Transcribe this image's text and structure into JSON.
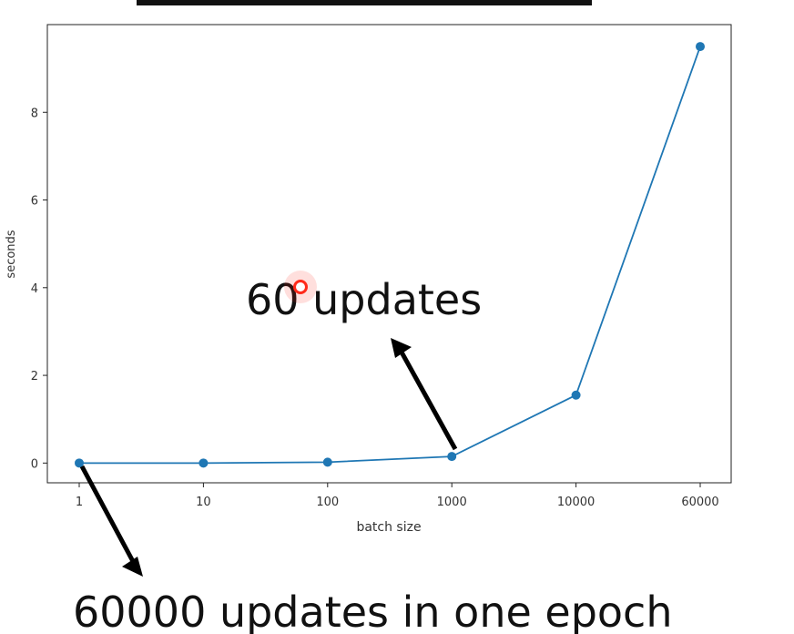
{
  "chart_data": {
    "type": "line",
    "title": "",
    "xlabel": "batch size",
    "ylabel": "seconds",
    "x_categories": [
      "1",
      "10",
      "100",
      "1000",
      "10000",
      "60000"
    ],
    "series": [
      {
        "color": "#1f77b4",
        "values": [
          0.0,
          0.0,
          0.02,
          0.15,
          1.55,
          9.5
        ]
      }
    ],
    "y_ticks": [
      0,
      2,
      4,
      6,
      8
    ],
    "ylim": [
      -0.45,
      10.0
    ],
    "grid": false,
    "marker": "circle"
  },
  "annotations": {
    "upper_label": "60 updates",
    "lower_label": "60000 updates in one epoch",
    "arrow_color": "#000000"
  },
  "cursor": {
    "color": "#ff2a1a",
    "x_category_index": 1.8,
    "y_value": 4.0
  }
}
